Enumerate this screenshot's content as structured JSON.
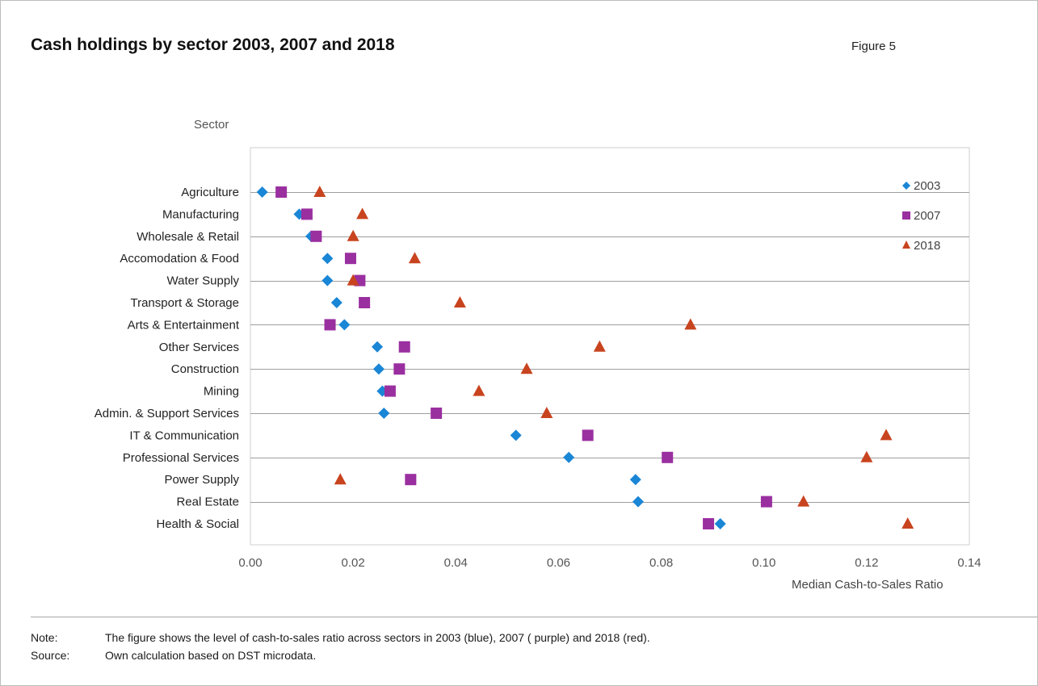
{
  "header": {
    "title": "Cash holdings by sector 2003, 2007 and 2018",
    "figure_label": "Figure 5"
  },
  "footer": {
    "note_key": "Note:",
    "note_text": "The figure shows the level of cash-to-sales ratio across sectors in 2003 (blue), 2007 ( purple) and 2018 (red).",
    "source_key": "Source:",
    "source_text": "Own calculation based on DST microdata."
  },
  "chart_data": {
    "type": "scatter",
    "title": "Cash holdings by sector 2003, 2007 and 2018",
    "xlabel": "Median Cash-to-Sales Ratio",
    "ylabel": "Sector",
    "xlim": [
      0,
      0.14
    ],
    "x_ticks": [
      "0.00",
      "0.02",
      "0.04",
      "0.06",
      "0.08",
      "0.10",
      "0.12",
      "0.14"
    ],
    "legend_position": "top-right",
    "grid": "horizontal",
    "categories": [
      "Agriculture",
      "Manufacturing",
      "Wholesale & Retail",
      "Accomodation & Food",
      "Water Supply",
      "Transport & Storage",
      "Arts & Entertainment",
      "Other Services",
      "Construction",
      "Mining",
      "Admin. & Support Services",
      "IT & Communication",
      "Professional Services",
      "Power Supply",
      "Real Estate",
      "Health & Social"
    ],
    "series": [
      {
        "name": "2003",
        "color": "#1a86d6",
        "marker": "diamond",
        "values": [
          0.0023,
          0.0095,
          0.0118,
          0.015,
          0.015,
          0.0168,
          0.0183,
          0.0247,
          0.025,
          0.0257,
          0.026,
          0.0517,
          0.062,
          0.075,
          0.0755,
          0.0915
        ]
      },
      {
        "name": "2007",
        "color": "#9a2fa0",
        "marker": "square",
        "values": [
          0.006,
          0.011,
          0.0128,
          0.0195,
          0.0213,
          0.0222,
          0.0155,
          0.03,
          0.029,
          0.0272,
          0.0362,
          0.0657,
          0.0812,
          0.0312,
          0.1005,
          0.0892
        ]
      },
      {
        "name": "2018",
        "color": "#c8441f",
        "marker": "triangle",
        "values": [
          0.0135,
          0.0218,
          0.02,
          0.032,
          0.02,
          0.0408,
          0.0857,
          0.068,
          0.0538,
          0.0445,
          0.0577,
          0.1238,
          0.12,
          0.0175,
          0.1077,
          0.128
        ]
      }
    ]
  }
}
